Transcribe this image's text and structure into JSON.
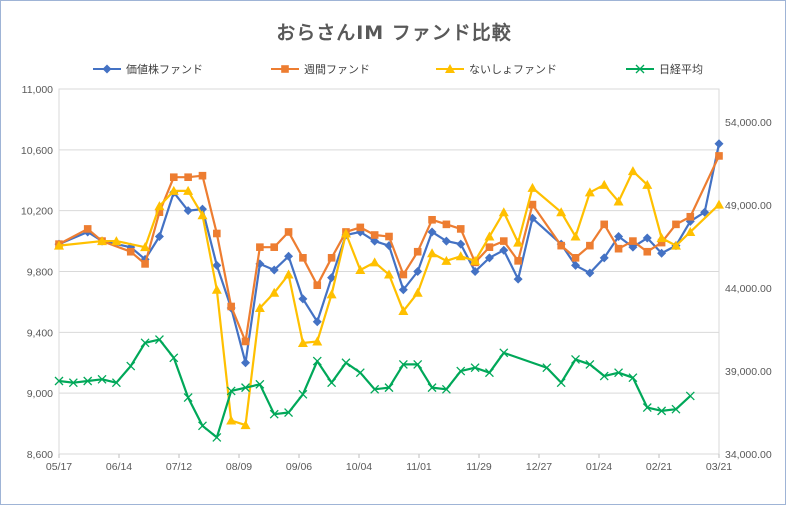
{
  "chart_data": {
    "type": "line",
    "title": "おらさんIM ファンド比較",
    "x_tick_labels": [
      "05/17",
      "06/14",
      "07/12",
      "08/09",
      "09/06",
      "10/04",
      "11/01",
      "11/29",
      "12/27",
      "01/24",
      "02/21",
      "03/21"
    ],
    "y_left_range": [
      8600,
      11000
    ],
    "y_left_ticks": [
      8600,
      9000,
      9400,
      9800,
      10200,
      10600,
      11000
    ],
    "y_left_tick_labels": [
      "8,600",
      "9,000",
      "9,400",
      "9,800",
      "10,200",
      "10,600",
      "11,000"
    ],
    "y_right_range": [
      34000,
      56000
    ],
    "y_right_ticks": [
      34000,
      39000,
      44000,
      49000,
      54000
    ],
    "y_right_tick_labels": [
      "34,000.00",
      "39,000.00",
      "44,000.00",
      "49,000.00",
      "54,000.00"
    ],
    "grid": "horizontal",
    "legend_position": "top",
    "n_points": 50,
    "series": [
      {
        "name": "価値株ファンド",
        "axis": "left",
        "color": "#4472C4",
        "marker": "diamond",
        "values": [
          9980,
          10060,
          10000,
          9960,
          9880,
          10030,
          10320,
          10200,
          10210,
          9840,
          9560,
          9200,
          9850,
          9810,
          9900,
          9620,
          9470,
          9760,
          10040,
          10060,
          10000,
          9970,
          9680,
          9800,
          10060,
          10000,
          9980,
          9800,
          9890,
          9940,
          9750,
          10150,
          9980,
          9840,
          9790,
          9890,
          10030,
          9960,
          10020,
          9920,
          9970,
          10130,
          10190,
          10640
        ],
        "x_index": [
          0,
          2,
          3,
          5,
          6,
          7,
          8,
          9,
          10,
          11,
          12,
          13,
          14,
          15,
          16,
          17,
          18,
          19,
          20,
          21,
          22,
          23,
          24,
          25,
          26,
          27,
          28,
          29,
          30,
          31,
          32,
          33,
          35,
          36,
          37,
          38,
          39,
          40,
          41,
          42,
          43,
          44,
          45,
          46
        ]
      },
      {
        "name": "週間ファンド",
        "axis": "left",
        "color": "#ED7D31",
        "marker": "square",
        "values": [
          9980,
          10080,
          10000,
          9930,
          9850,
          10190,
          10420,
          10420,
          10430,
          10050,
          9570,
          9340,
          9960,
          9960,
          10060,
          9890,
          9710,
          9890,
          10060,
          10090,
          10040,
          10030,
          9780,
          9930,
          10140,
          10110,
          10080,
          9860,
          9960,
          10000,
          9870,
          10240,
          9970,
          9890,
          9970,
          10110,
          9950,
          10000,
          9930,
          9990,
          10110,
          10160,
          10560
        ],
        "x_index": [
          0,
          2,
          3,
          5,
          6,
          7,
          8,
          9,
          10,
          11,
          12,
          13,
          14,
          15,
          16,
          17,
          18,
          19,
          20,
          21,
          22,
          23,
          24,
          25,
          26,
          27,
          28,
          29,
          30,
          31,
          32,
          33,
          35,
          36,
          37,
          38,
          39,
          40,
          41,
          42,
          43,
          44,
          46
        ]
      },
      {
        "name": "ないしょファンド",
        "axis": "left",
        "color": "#FFC000",
        "marker": "triangle",
        "values": [
          9970,
          10000,
          10000,
          9960,
          10230,
          10330,
          10330,
          10170,
          9680,
          8820,
          8790,
          9560,
          9660,
          9780,
          9330,
          9340,
          9650,
          10050,
          9810,
          9860,
          9780,
          9540,
          9660,
          9920,
          9870,
          9900,
          9870,
          10030,
          10190,
          9990,
          10350,
          10190,
          10030,
          10320,
          10370,
          10260,
          10460,
          10370,
          10020,
          9970,
          10060,
          10240
        ],
        "x_index": [
          0,
          3,
          4,
          6,
          7,
          8,
          9,
          10,
          11,
          12,
          13,
          14,
          15,
          16,
          17,
          18,
          19,
          20,
          21,
          22,
          23,
          24,
          25,
          26,
          27,
          28,
          29,
          30,
          31,
          32,
          33,
          35,
          36,
          37,
          38,
          39,
          40,
          41,
          42,
          43,
          44,
          46
        ]
      },
      {
        "name": "日経平均",
        "axis": "right",
        "color": "#00A859",
        "marker": "x",
        "values": [
          38400,
          38300,
          38400,
          38500,
          38300,
          39300,
          40700,
          40900,
          39800,
          37400,
          35700,
          35000,
          37800,
          38000,
          38200,
          36400,
          36500,
          37600,
          39600,
          38300,
          39500,
          38900,
          37900,
          38000,
          39400,
          39400,
          38000,
          37900,
          39000,
          39200,
          38900,
          40100,
          39200,
          38300,
          39700,
          39400,
          38700,
          38900,
          38600,
          36800,
          36600,
          36700,
          37500
        ],
        "x_index": [
          0,
          1,
          2,
          3,
          4,
          5,
          6,
          7,
          8,
          9,
          10,
          11,
          12,
          13,
          14,
          15,
          16,
          17,
          18,
          19,
          20,
          21,
          22,
          23,
          24,
          25,
          26,
          27,
          28,
          29,
          30,
          31,
          34,
          35,
          36,
          37,
          38,
          39,
          40,
          41,
          42,
          43,
          44
        ]
      }
    ]
  }
}
